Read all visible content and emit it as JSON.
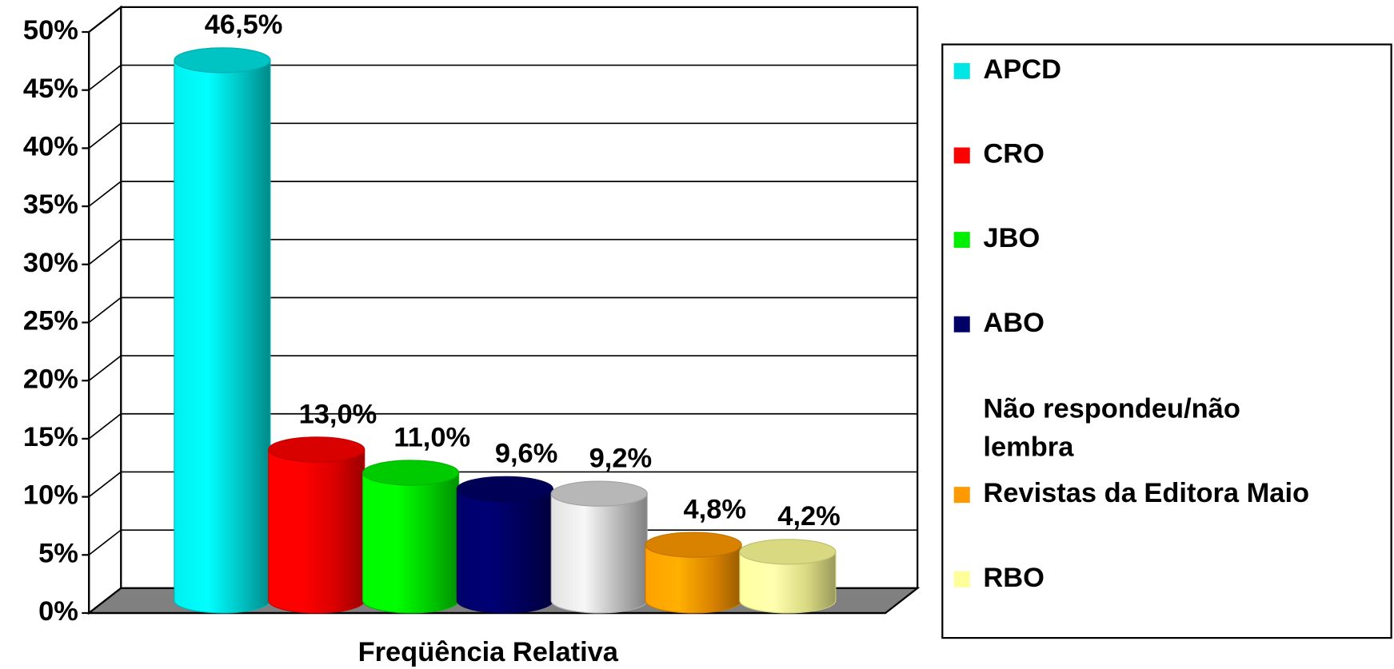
{
  "chart_data": {
    "type": "bar",
    "x_label": "Freqüência Relativa",
    "categories": [
      "Freqüência Relativa"
    ],
    "series": [
      {
        "name": "APCD",
        "color": "#00e5e5",
        "values": [
          46.5
        ],
        "value_labels": [
          "46,5%"
        ]
      },
      {
        "name": "CRO",
        "color": "#ff0000",
        "values": [
          13.0
        ],
        "value_labels": [
          "13,0%"
        ]
      },
      {
        "name": "JBO",
        "color": "#00ee00",
        "values": [
          11.0
        ],
        "value_labels": [
          "11,0%"
        ]
      },
      {
        "name": "ABO",
        "color": "#000066",
        "values": [
          9.6
        ],
        "value_labels": [
          "9,6%"
        ]
      },
      {
        "name": "Não respondeu/não lembra",
        "color": "#ffffff",
        "values": [
          9.2
        ],
        "value_labels": [
          "9,2%"
        ]
      },
      {
        "name": "Revistas da Editora Maio",
        "color": "#ff9900",
        "values": [
          4.8
        ],
        "value_labels": [
          "4,8%"
        ]
      },
      {
        "name": "RBO",
        "color": "#ffff99",
        "values": [
          4.2
        ],
        "value_labels": [
          "4,2%"
        ]
      }
    ],
    "ylim": [
      0,
      50
    ],
    "yticks": [
      {
        "value": 0,
        "label": "0%"
      },
      {
        "value": 5,
        "label": "5%"
      },
      {
        "value": 10,
        "label": "10%"
      },
      {
        "value": 15,
        "label": "15%"
      },
      {
        "value": 20,
        "label": "20%"
      },
      {
        "value": 25,
        "label": "25%"
      },
      {
        "value": 30,
        "label": "30%"
      },
      {
        "value": 35,
        "label": "35%"
      },
      {
        "value": 40,
        "label": "40%"
      },
      {
        "value": 45,
        "label": "45%"
      },
      {
        "value": 50,
        "label": "50%"
      }
    ],
    "grid": true,
    "legend": "right"
  }
}
